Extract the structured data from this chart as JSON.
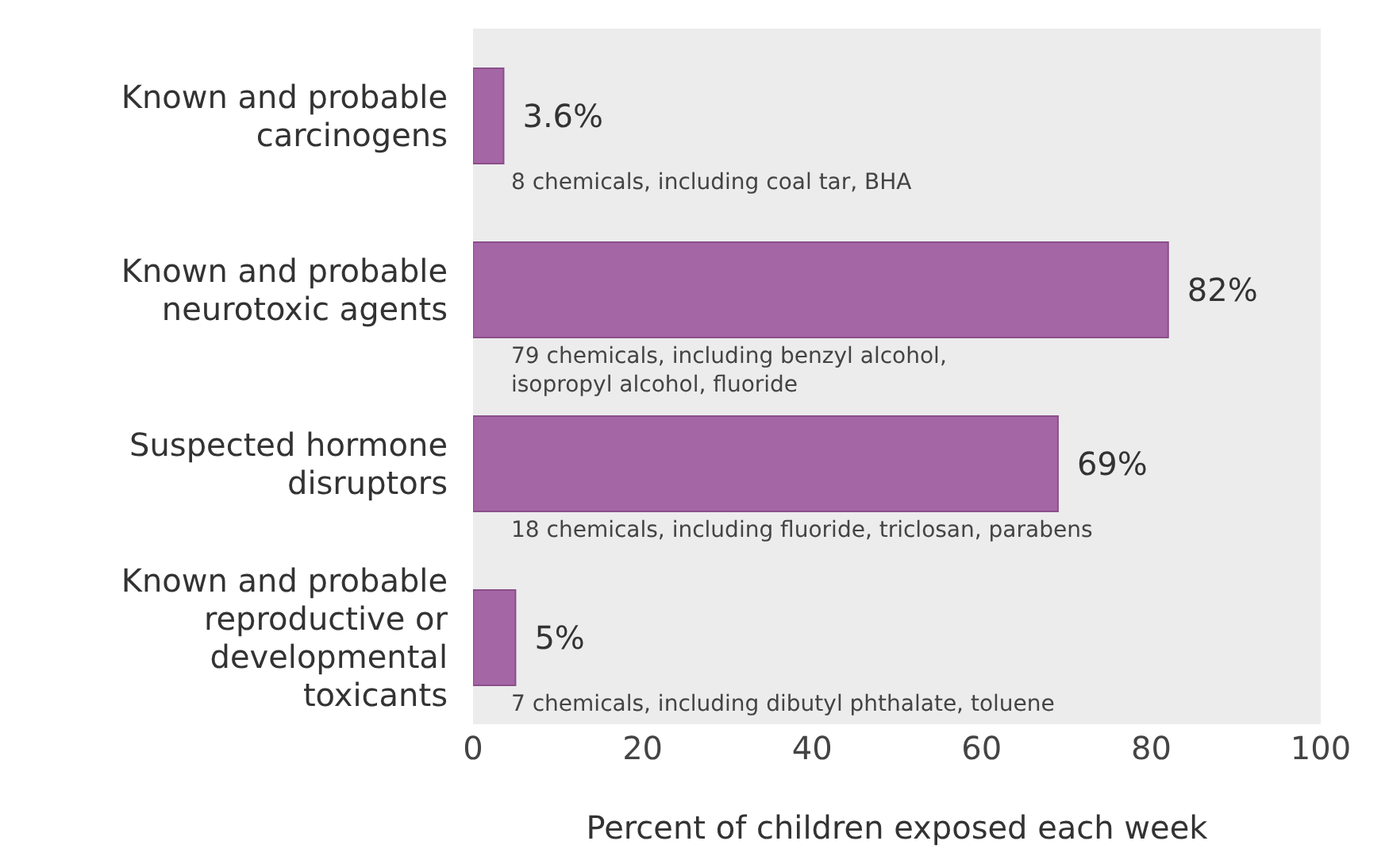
{
  "chart_data": {
    "type": "bar",
    "orientation": "horizontal",
    "xlabel": "Percent of children exposed each week",
    "categories": [
      "Known and probable\ncarcinogens",
      "Known and probable\nneurotoxic agents",
      "Suspected hormone\ndisruptors",
      "Known and probable\nreproductive or\ndevelopmental\ntoxicants"
    ],
    "values": [
      3.6,
      82,
      69,
      5
    ],
    "value_labels": [
      "3.6%",
      "82%",
      "69%",
      "5%"
    ],
    "color": "#a566a5",
    "xlim": [
      0,
      100
    ],
    "xticks": [
      0,
      20,
      40,
      60,
      80,
      100
    ],
    "grid": false,
    "annotations": [
      "8 chemicals, including coal tar, BHA",
      "79 chemicals, including benzyl alcohol,\nisopropyl alcohol, fluoride",
      "18 chemicals, including fluoride, triclosan, parabens",
      "7 chemicals, including dibutyl phthalate, toluene"
    ]
  }
}
